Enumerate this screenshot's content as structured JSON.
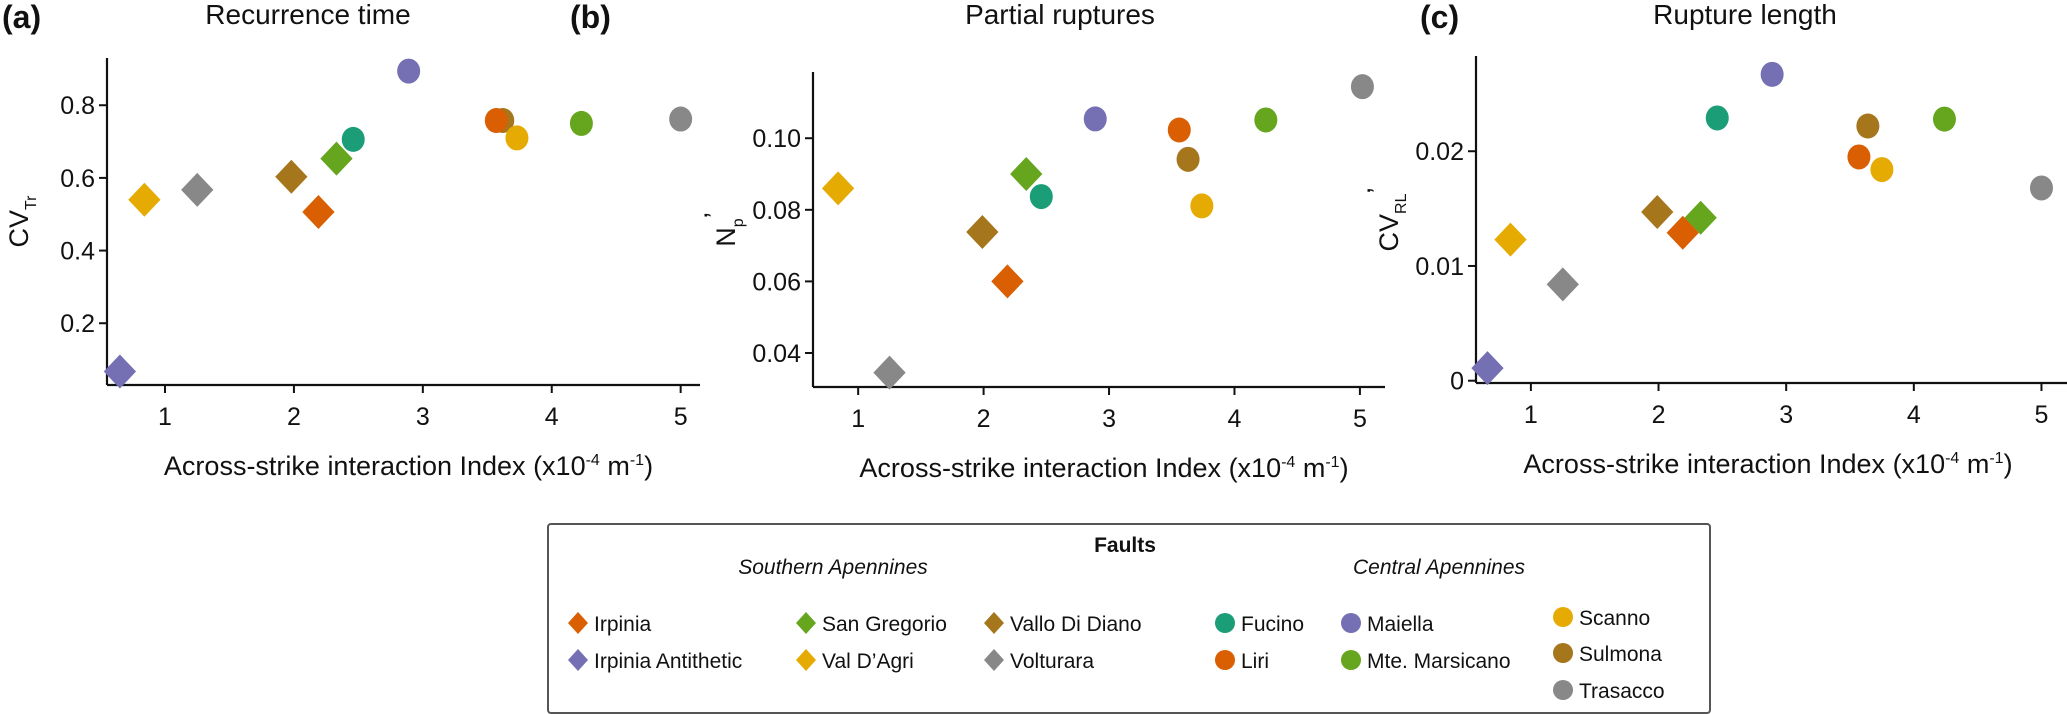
{
  "chart_data": [
    {
      "type": "scatter",
      "panel_letter": "(a)",
      "title": "Recurrence time",
      "xlabel": "Across-strike interaction Index (x10",
      "xlabel_sup1": "-4",
      "xlabel_mid": " m",
      "xlabel_sup2": "-1",
      "xlabel_end": ")",
      "ylabel": "CV",
      "ylabel_sub": "Tr",
      "ylabel_prime": "",
      "xlim": [
        0.55,
        5.15
      ],
      "ylim": [
        0.03,
        0.93
      ],
      "xticks": [
        1,
        2,
        3,
        4,
        5
      ],
      "yticks": [
        0.2,
        0.4,
        0.6,
        0.8
      ],
      "ytick_labels": [
        "0.2",
        "0.4",
        "0.6",
        "0.8"
      ],
      "grid": false,
      "points": [
        {
          "fault": "Irpinia Antithetic",
          "x": 0.65,
          "y": 0.067
        },
        {
          "fault": "Val D'Agri",
          "x": 0.84,
          "y": 0.54
        },
        {
          "fault": "Volturara",
          "x": 1.25,
          "y": 0.567
        },
        {
          "fault": "Vallo Di Diano",
          "x": 1.98,
          "y": 0.603
        },
        {
          "fault": "Irpinia",
          "x": 2.19,
          "y": 0.506
        },
        {
          "fault": "San Gregorio",
          "x": 2.33,
          "y": 0.653
        },
        {
          "fault": "Fucino",
          "x": 2.46,
          "y": 0.706
        },
        {
          "fault": "Maiella",
          "x": 2.89,
          "y": 0.894
        },
        {
          "fault": "Sulmona",
          "x": 3.62,
          "y": 0.758
        },
        {
          "fault": "Liri",
          "x": 3.57,
          "y": 0.758
        },
        {
          "fault": "Scanno",
          "x": 3.73,
          "y": 0.71
        },
        {
          "fault": "Mte. Marsicano",
          "x": 4.23,
          "y": 0.75
        },
        {
          "fault": "Trasacco",
          "x": 5.0,
          "y": 0.762
        }
      ]
    },
    {
      "type": "scatter",
      "panel_letter": "(b)",
      "title": "Partial ruptures",
      "xlabel": "Across-strike interaction Index (x10",
      "xlabel_sup1": "-4",
      "xlabel_mid": " m",
      "xlabel_sup2": "-1",
      "xlabel_end": ")",
      "ylabel": "N",
      "ylabel_sub": "p",
      "ylabel_prime": "’",
      "xlim": [
        0.64,
        5.2
      ],
      "ylim": [
        0.0305,
        0.1185
      ],
      "xticks": [
        1,
        2,
        3,
        4,
        5
      ],
      "yticks": [
        0.04,
        0.06,
        0.08,
        0.1
      ],
      "ytick_labels": [
        "0.04",
        "0.06",
        "0.08",
        "0.10"
      ],
      "grid": false,
      "points": [
        {
          "fault": "Val D'Agri",
          "x": 0.84,
          "y": 0.086
        },
        {
          "fault": "Volturara",
          "x": 1.25,
          "y": 0.0345
        },
        {
          "fault": "Vallo Di Diano",
          "x": 1.99,
          "y": 0.0738
        },
        {
          "fault": "Irpinia",
          "x": 2.19,
          "y": 0.06
        },
        {
          "fault": "San Gregorio",
          "x": 2.34,
          "y": 0.09
        },
        {
          "fault": "Fucino",
          "x": 2.46,
          "y": 0.0837
        },
        {
          "fault": "Maiella",
          "x": 2.89,
          "y": 0.1054
        },
        {
          "fault": "Liri",
          "x": 3.56,
          "y": 0.1023
        },
        {
          "fault": "Sulmona",
          "x": 3.63,
          "y": 0.0941
        },
        {
          "fault": "Scanno",
          "x": 3.74,
          "y": 0.0811
        },
        {
          "fault": "Mte. Marsicano",
          "x": 4.25,
          "y": 0.1051
        },
        {
          "fault": "Trasacco",
          "x": 5.02,
          "y": 0.1144
        }
      ]
    },
    {
      "type": "scatter",
      "panel_letter": "(c)",
      "title": "Rupture length",
      "xlabel": "Across-strike interaction Index (x10",
      "xlabel_sup1": "-4",
      "xlabel_mid": " m",
      "xlabel_sup2": "-1",
      "xlabel_end": ")",
      "ylabel": "CV",
      "ylabel_sub": "RL",
      "ylabel_prime": "’",
      "xlim": [
        0.57,
        5.2
      ],
      "ylim": [
        -0.0002,
        0.0283
      ],
      "xticks": [
        1,
        2,
        3,
        4,
        5
      ],
      "yticks": [
        0,
        0.01,
        0.02
      ],
      "ytick_labels": [
        "0",
        "0.01",
        "0.02"
      ],
      "grid": false,
      "points": [
        {
          "fault": "Irpinia Antithetic",
          "x": 0.66,
          "y": 0.0011
        },
        {
          "fault": "Val D'Agri",
          "x": 0.84,
          "y": 0.0123
        },
        {
          "fault": "Volturara",
          "x": 1.25,
          "y": 0.0084
        },
        {
          "fault": "Vallo Di Diano",
          "x": 1.99,
          "y": 0.0147
        },
        {
          "fault": "San Gregorio",
          "x": 2.33,
          "y": 0.0142
        },
        {
          "fault": "Irpinia",
          "x": 2.19,
          "y": 0.0129
        },
        {
          "fault": "Fucino",
          "x": 2.46,
          "y": 0.0229
        },
        {
          "fault": "Maiella",
          "x": 2.89,
          "y": 0.0267
        },
        {
          "fault": "Liri",
          "x": 3.57,
          "y": 0.0195
        },
        {
          "fault": "Sulmona",
          "x": 3.64,
          "y": 0.0222
        },
        {
          "fault": "Scanno",
          "x": 3.75,
          "y": 0.0184
        },
        {
          "fault": "Mte. Marsicano",
          "x": 4.24,
          "y": 0.0228
        },
        {
          "fault": "Trasacco",
          "x": 5.0,
          "y": 0.0168
        }
      ]
    }
  ],
  "faults": {
    "Irpinia": {
      "color": "#d95f02",
      "marker": "diamond",
      "region": "Southern Apennines"
    },
    "Irpinia Antithetic": {
      "color": "#7570b3",
      "marker": "diamond",
      "region": "Southern Apennines"
    },
    "San Gregorio": {
      "color": "#66a61e",
      "marker": "diamond",
      "region": "Southern Apennines"
    },
    "Val D'Agri": {
      "color": "#e6ab02",
      "marker": "diamond",
      "region": "Southern Apennines"
    },
    "Vallo Di Diano": {
      "color": "#a6761d",
      "marker": "diamond",
      "region": "Southern Apennines"
    },
    "Volturara": {
      "color": "#888888",
      "marker": "diamond",
      "region": "Southern Apennines"
    },
    "Fucino": {
      "color": "#1b9e77",
      "marker": "circle",
      "region": "Central Apennines"
    },
    "Liri": {
      "color": "#d95f02",
      "marker": "circle",
      "region": "Central Apennines"
    },
    "Maiella": {
      "color": "#7570b3",
      "marker": "circle",
      "region": "Central Apennines"
    },
    "Mte. Marsicano": {
      "color": "#66a61e",
      "marker": "circle",
      "region": "Central Apennines"
    },
    "Scanno": {
      "color": "#e6ab02",
      "marker": "circle",
      "region": "Central Apennines"
    },
    "Sulmona": {
      "color": "#a6761d",
      "marker": "circle",
      "region": "Central Apennines"
    },
    "Trasacco": {
      "color": "#888888",
      "marker": "circle",
      "region": "Central Apennines"
    }
  },
  "legend": {
    "title": "Faults",
    "placement": "bottom-center",
    "groups": [
      {
        "label": "Southern Apennines",
        "columns": [
          [
            "Irpinia",
            "Irpinia Antithetic"
          ],
          [
            "San Gregorio",
            "Val D’Agri"
          ],
          [
            "Vallo Di Diano",
            "Volturara"
          ]
        ],
        "keys": [
          [
            "Irpinia",
            "Irpinia Antithetic"
          ],
          [
            "San Gregorio",
            "Val D'Agri"
          ],
          [
            "Vallo Di Diano",
            "Volturara"
          ]
        ]
      },
      {
        "label": "Central Apennines",
        "columns": [
          [
            "Fucino",
            "Liri"
          ],
          [
            "Maiella",
            "Mte. Marsicano"
          ],
          [
            "Scanno",
            "Sulmona",
            "Trasacco"
          ]
        ],
        "keys": [
          [
            "Fucino",
            "Liri"
          ],
          [
            "Maiella",
            "Mte. Marsicano"
          ],
          [
            "Scanno",
            "Sulmona",
            "Trasacco"
          ]
        ]
      }
    ]
  }
}
